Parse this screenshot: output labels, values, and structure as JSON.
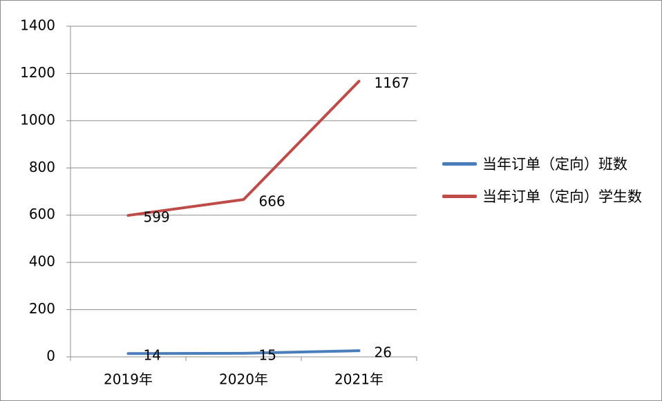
{
  "chart_data": {
    "type": "line",
    "categories": [
      "2019年",
      "2020年",
      "2021年"
    ],
    "series": [
      {
        "name": "当年订单（定向）班数",
        "color": "#4a7ebb",
        "values": [
          14,
          15,
          26
        ]
      },
      {
        "name": "当年订单（定向）学生数",
        "color": "#be4b48",
        "values": [
          599,
          666,
          1167
        ]
      }
    ],
    "ylim": [
      0,
      1400
    ],
    "yticks": [
      0,
      200,
      400,
      600,
      800,
      1000,
      1200,
      1400
    ],
    "grid": true,
    "legend": "right"
  }
}
